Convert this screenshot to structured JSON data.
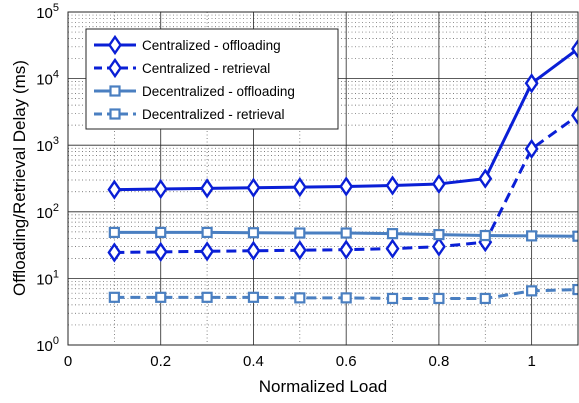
{
  "chart_data": {
    "type": "line",
    "xlabel": "Normalized Load",
    "ylabel": "Offloading/Retrieval Delay (ms)",
    "xlim": [
      0,
      1.1
    ],
    "ylim": [
      1,
      100000
    ],
    "yscale": "log",
    "grid": "major and minor",
    "legend_position": "top-left",
    "x_ticks": [
      "0",
      "0.2",
      "0.4",
      "0.6",
      "0.8",
      "1"
    ],
    "y_ticks": [
      {
        "base": "10",
        "exp": "0"
      },
      {
        "base": "10",
        "exp": "1"
      },
      {
        "base": "10",
        "exp": "2"
      },
      {
        "base": "10",
        "exp": "3"
      },
      {
        "base": "10",
        "exp": "4"
      },
      {
        "base": "10",
        "exp": "5"
      }
    ],
    "x": [
      0.1,
      0.2,
      0.3,
      0.4,
      0.5,
      0.6,
      0.7,
      0.8,
      0.9,
      1.0,
      1.1
    ],
    "series": [
      {
        "name": "Centralized - offloading",
        "color": "#0a1fd6",
        "line_style": "solid",
        "marker": "diamond",
        "values": [
          215,
          220,
          225,
          230,
          235,
          240,
          248,
          262,
          315,
          8500,
          28000
        ]
      },
      {
        "name": "Centralized - retrieval",
        "color": "#0a1fd6",
        "line_style": "dashed",
        "marker": "diamond",
        "values": [
          24.5,
          25,
          25.5,
          26,
          26.5,
          27,
          28,
          30,
          35,
          880,
          2800
        ]
      },
      {
        "name": "Decentralized - offloading",
        "color": "#4a7fc1",
        "line_style": "solid",
        "marker": "square",
        "values": [
          49,
          49,
          49,
          48.5,
          48,
          48,
          47,
          45.5,
          44,
          43.5,
          43
        ]
      },
      {
        "name": "Decentralized - retrieval",
        "color": "#4a7fc1",
        "line_style": "dashed",
        "marker": "square",
        "values": [
          5.2,
          5.2,
          5.2,
          5.2,
          5.1,
          5.1,
          5.0,
          5.0,
          5.0,
          6.5,
          6.8
        ]
      }
    ]
  }
}
